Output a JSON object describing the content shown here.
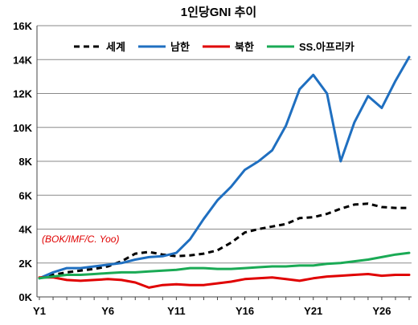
{
  "chart_data": {
    "type": "line",
    "title": "1인당GNI 추이",
    "x_tick_labels": [
      "Y1",
      "Y6",
      "Y11",
      "Y16",
      "Y21",
      "Y26"
    ],
    "y_tick_labels": [
      "0K",
      "2K",
      "4K",
      "6K",
      "8K",
      "10K",
      "12K",
      "14K",
      "16K"
    ],
    "ylim": [
      0,
      16000
    ],
    "xlim": [
      1,
      28
    ],
    "grid": "horizontal",
    "legend_position": "top",
    "annotation": "(BOK/IMF/C. Yoo)",
    "x": [
      1,
      2,
      3,
      4,
      5,
      6,
      7,
      8,
      9,
      10,
      11,
      12,
      13,
      14,
      15,
      16,
      17,
      18,
      19,
      20,
      21,
      22,
      23,
      24,
      25,
      26,
      27,
      28
    ],
    "series": [
      {
        "name": "세계",
        "color": "#000000",
        "dash": true,
        "values": [
          1100,
          1300,
          1450,
          1550,
          1650,
          1800,
          2100,
          2550,
          2650,
          2500,
          2400,
          2450,
          2550,
          2750,
          3200,
          3800,
          4000,
          4150,
          4300,
          4650,
          4700,
          4900,
          5200,
          5450,
          5500,
          5300,
          5250,
          5250
        ]
      },
      {
        "name": "남한",
        "color": "#1f6fc0",
        "dash": false,
        "values": [
          1100,
          1450,
          1700,
          1700,
          1800,
          1900,
          2000,
          2200,
          2350,
          2400,
          2600,
          3400,
          4600,
          5700,
          6500,
          7500,
          8000,
          8650,
          10100,
          12250,
          13100,
          12000,
          8000,
          10300,
          11850,
          11150,
          12750,
          14150
        ]
      },
      {
        "name": "북한",
        "color": "#e00000",
        "dash": false,
        "values": [
          1150,
          1150,
          1000,
          950,
          1000,
          1050,
          1000,
          850,
          550,
          700,
          750,
          700,
          700,
          800,
          900,
          1050,
          1100,
          1150,
          1050,
          950,
          1100,
          1200,
          1250,
          1300,
          1350,
          1250,
          1300,
          1300
        ]
      },
      {
        "name": "SS.아프리카",
        "color": "#1aaa55",
        "dash": false,
        "values": [
          1100,
          1200,
          1300,
          1300,
          1350,
          1400,
          1450,
          1450,
          1500,
          1550,
          1600,
          1700,
          1700,
          1650,
          1650,
          1700,
          1750,
          1800,
          1800,
          1850,
          1850,
          1950,
          2000,
          2100,
          2200,
          2350,
          2500,
          2600
        ]
      }
    ]
  }
}
